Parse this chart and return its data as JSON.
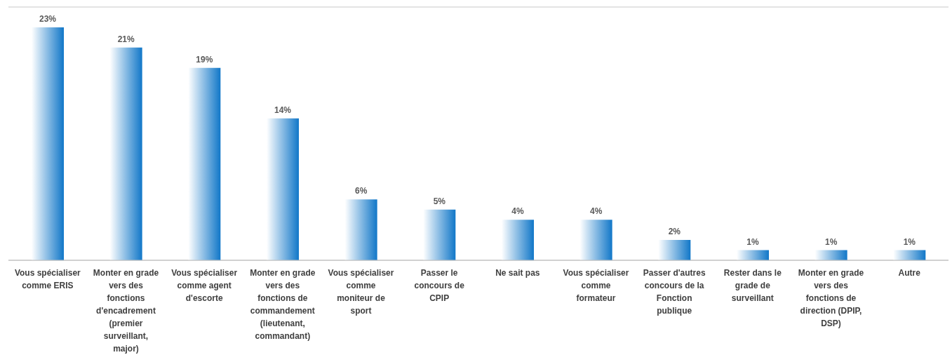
{
  "chart_data": {
    "type": "bar",
    "categories": [
      "Vous spécialiser comme ERIS",
      "Monter en grade vers des fonctions d'encadrement (premier surveillant, major)",
      "Vous spécialiser comme agent d'escorte",
      "Monter en grade vers des fonctions de commandement (lieutenant, commandant)",
      "Vous spécialiser comme moniteur de sport",
      "Passer le concours de CPIP",
      "Ne sait pas",
      "Vous spécialiser comme formateur",
      "Passer d'autres concours de la Fonction publique",
      "Rester dans le grade de surveillant",
      "Monter en grade vers des fonctions de direction (DPIP, DSP)",
      "Autre"
    ],
    "values": [
      23,
      21,
      19,
      14,
      6,
      5,
      4,
      4,
      2,
      1,
      1,
      1
    ],
    "value_labels": [
      "23%",
      "21%",
      "19%",
      "14%",
      "6%",
      "5%",
      "4%",
      "4%",
      "2%",
      "1%",
      "1%",
      "1%"
    ],
    "color": "#1177c8",
    "ylim": [
      0,
      25
    ],
    "grid": "y",
    "tick_labels": "x",
    "legend": false
  }
}
